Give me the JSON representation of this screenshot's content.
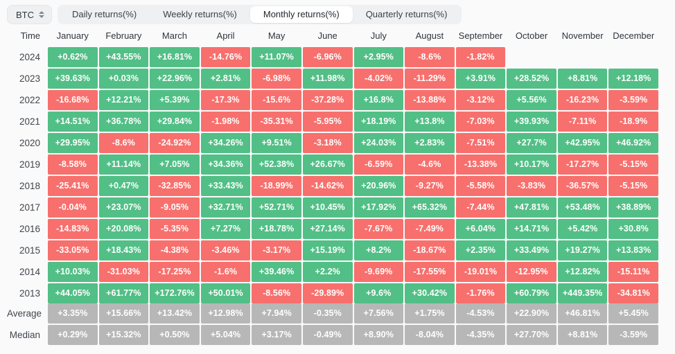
{
  "colors": {
    "positive": "#52bf86",
    "negative": "#f7706d",
    "neutral": "#b7b7b7",
    "control_bg": "#eef0f2",
    "page_bg": "#fafafa"
  },
  "coin_selector": {
    "label": "BTC",
    "icon": "updown-chevron-icon"
  },
  "tabs": [
    {
      "label": "Daily returns(%)",
      "active": false
    },
    {
      "label": "Weekly returns(%)",
      "active": false
    },
    {
      "label": "Monthly returns(%)",
      "active": true
    },
    {
      "label": "Quarterly returns(%)",
      "active": false
    }
  ],
  "table": {
    "columns": [
      "Time",
      "January",
      "February",
      "March",
      "April",
      "May",
      "June",
      "July",
      "August",
      "September",
      "October",
      "November",
      "December"
    ],
    "rows": [
      {
        "label": "2024",
        "type": "year",
        "values": [
          "+0.62%",
          "+43.55%",
          "+16.81%",
          "-14.76%",
          "+11.07%",
          "-6.96%",
          "+2.95%",
          "-8.6%",
          "-1.82%",
          null,
          null,
          null
        ]
      },
      {
        "label": "2023",
        "type": "year",
        "values": [
          "+39.63%",
          "+0.03%",
          "+22.96%",
          "+2.81%",
          "-6.98%",
          "+11.98%",
          "-4.02%",
          "-11.29%",
          "+3.91%",
          "+28.52%",
          "+8.81%",
          "+12.18%"
        ]
      },
      {
        "label": "2022",
        "type": "year",
        "values": [
          "-16.68%",
          "+12.21%",
          "+5.39%",
          "-17.3%",
          "-15.6%",
          "-37.28%",
          "+16.8%",
          "-13.88%",
          "-3.12%",
          "+5.56%",
          "-16.23%",
          "-3.59%"
        ]
      },
      {
        "label": "2021",
        "type": "year",
        "values": [
          "+14.51%",
          "+36.78%",
          "+29.84%",
          "-1.98%",
          "-35.31%",
          "-5.95%",
          "+18.19%",
          "+13.8%",
          "-7.03%",
          "+39.93%",
          "-7.11%",
          "-18.9%"
        ]
      },
      {
        "label": "2020",
        "type": "year",
        "values": [
          "+29.95%",
          "-8.6%",
          "-24.92%",
          "+34.26%",
          "+9.51%",
          "-3.18%",
          "+24.03%",
          "+2.83%",
          "-7.51%",
          "+27.7%",
          "+42.95%",
          "+46.92%"
        ]
      },
      {
        "label": "2019",
        "type": "year",
        "values": [
          "-8.58%",
          "+11.14%",
          "+7.05%",
          "+34.36%",
          "+52.38%",
          "+26.67%",
          "-6.59%",
          "-4.6%",
          "-13.38%",
          "+10.17%",
          "-17.27%",
          "-5.15%"
        ]
      },
      {
        "label": "2018",
        "type": "year",
        "values": [
          "-25.41%",
          "+0.47%",
          "-32.85%",
          "+33.43%",
          "-18.99%",
          "-14.62%",
          "+20.96%",
          "-9.27%",
          "-5.58%",
          "-3.83%",
          "-36.57%",
          "-5.15%"
        ]
      },
      {
        "label": "2017",
        "type": "year",
        "values": [
          "-0.04%",
          "+23.07%",
          "-9.05%",
          "+32.71%",
          "+52.71%",
          "+10.45%",
          "+17.92%",
          "+65.32%",
          "-7.44%",
          "+47.81%",
          "+53.48%",
          "+38.89%"
        ]
      },
      {
        "label": "2016",
        "type": "year",
        "values": [
          "-14.83%",
          "+20.08%",
          "-5.35%",
          "+7.27%",
          "+18.78%",
          "+27.14%",
          "-7.67%",
          "-7.49%",
          "+6.04%",
          "+14.71%",
          "+5.42%",
          "+30.8%"
        ]
      },
      {
        "label": "2015",
        "type": "year",
        "values": [
          "-33.05%",
          "+18.43%",
          "-4.38%",
          "-3.46%",
          "-3.17%",
          "+15.19%",
          "+8.2%",
          "-18.67%",
          "+2.35%",
          "+33.49%",
          "+19.27%",
          "+13.83%"
        ]
      },
      {
        "label": "2014",
        "type": "year",
        "values": [
          "+10.03%",
          "-31.03%",
          "-17.25%",
          "-1.6%",
          "+39.46%",
          "+2.2%",
          "-9.69%",
          "-17.55%",
          "-19.01%",
          "-12.95%",
          "+12.82%",
          "-15.11%"
        ]
      },
      {
        "label": "2013",
        "type": "year",
        "values": [
          "+44.05%",
          "+61.77%",
          "+172.76%",
          "+50.01%",
          "-8.56%",
          "-29.89%",
          "+9.6%",
          "+30.42%",
          "-1.76%",
          "+60.79%",
          "+449.35%",
          "-34.81%"
        ]
      },
      {
        "label": "Average",
        "type": "stat",
        "values": [
          "+3.35%",
          "+15.66%",
          "+13.42%",
          "+12.98%",
          "+7.94%",
          "-0.35%",
          "+7.56%",
          "+1.75%",
          "-4.53%",
          "+22.90%",
          "+46.81%",
          "+5.45%"
        ]
      },
      {
        "label": "Median",
        "type": "stat",
        "values": [
          "+0.29%",
          "+15.32%",
          "+0.50%",
          "+5.04%",
          "+3.17%",
          "-0.49%",
          "+8.90%",
          "-8.04%",
          "-4.35%",
          "+27.70%",
          "+8.81%",
          "-3.59%"
        ]
      }
    ]
  }
}
